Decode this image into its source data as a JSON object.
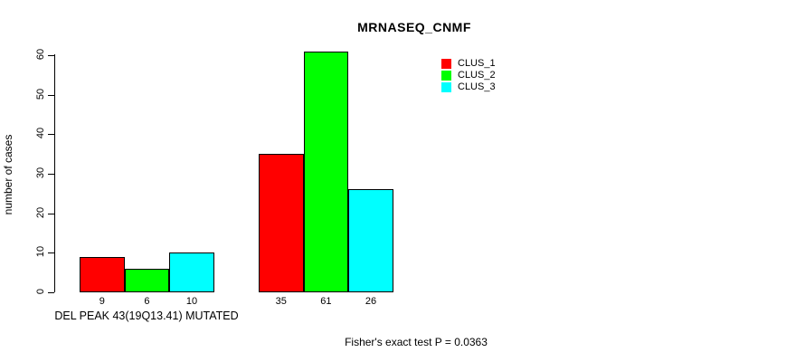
{
  "chart_data": {
    "type": "bar",
    "title": "MRNASEQ_CNMF",
    "ylabel": "number of cases",
    "xlabel": "DEL PEAK 43(19Q13.41) MUTATED",
    "annotation": "Fisher's exact test P = 0.0363",
    "ylim": [
      0,
      60
    ],
    "yticks": [
      0,
      10,
      20,
      30,
      40,
      50,
      60
    ],
    "groups": [
      "group-1",
      "group-2"
    ],
    "series": [
      {
        "name": "CLUS_1",
        "color": "#ff0000",
        "values": [
          9,
          35
        ]
      },
      {
        "name": "CLUS_2",
        "color": "#00ff00",
        "values": [
          6,
          61
        ]
      },
      {
        "name": "CLUS_3",
        "color": "#00ffff",
        "values": [
          10,
          26
        ]
      }
    ],
    "bar_value_labels": [
      [
        "9",
        "6",
        "10"
      ],
      [
        "35",
        "61",
        "26"
      ]
    ],
    "grid": false,
    "legend_position": "top-right",
    "axis_color": "#000000",
    "background_color": "#ffffff"
  }
}
